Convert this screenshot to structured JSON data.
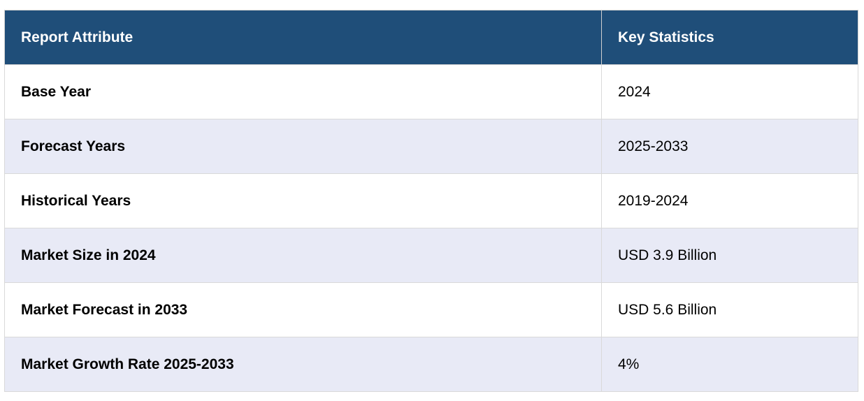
{
  "table": {
    "headers": [
      "Report Attribute",
      "Key Statistics"
    ],
    "rows": [
      {
        "attribute": "Base Year",
        "value": "2024"
      },
      {
        "attribute": "Forecast Years",
        "value": "2025-2033"
      },
      {
        "attribute": "Historical Years",
        "value": "2019-2024"
      },
      {
        "attribute": "Market Size in 2024",
        "value": "USD 3.9 Billion"
      },
      {
        "attribute": "Market Forecast in 2033",
        "value": "USD 5.6 Billion"
      },
      {
        "attribute": "Market Growth Rate 2025-2033",
        "value": "4%"
      }
    ]
  },
  "colors": {
    "header_bg": "#1f4e79",
    "header_text": "#ffffff",
    "row_alt_bg": "#e8eaf6",
    "row_bg": "#ffffff"
  }
}
